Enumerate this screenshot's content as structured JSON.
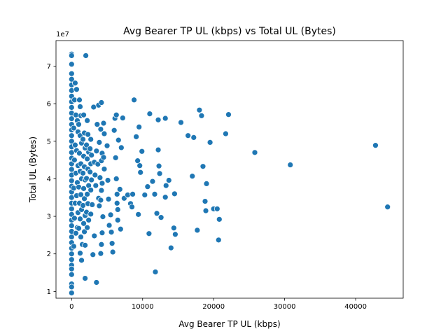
{
  "chart_data": {
    "type": "scatter",
    "title": "Avg Bearer TP UL (kbps) vs Total UL (Bytes)",
    "xlabel": "Avg Bearer TP UL (kbps)",
    "ylabel": "Total UL (Bytes)",
    "y_offset_label": "1e7",
    "xlim": [
      -2200,
      46700
    ],
    "ylim": [
      8200000.0,
      76800000.0
    ],
    "x_ticks": [
      0,
      10000,
      20000,
      30000,
      40000
    ],
    "x_tick_labels": [
      "0",
      "10000",
      "20000",
      "30000",
      "40000"
    ],
    "y_ticks": [
      10000000.0,
      20000000.0,
      30000000.0,
      40000000.0,
      50000000.0,
      60000000.0,
      70000000.0
    ],
    "y_tick_labels": [
      "1",
      "2",
      "3",
      "4",
      "5",
      "6",
      "7"
    ],
    "grid": false,
    "marker_color": "#1f77b4",
    "points": [
      [
        0,
        73200000
      ],
      [
        0,
        72800000
      ],
      [
        0,
        70500000
      ],
      [
        0,
        68000000
      ],
      [
        0,
        66500000
      ],
      [
        0,
        65000000
      ],
      [
        0,
        63500000
      ],
      [
        0,
        62000000
      ],
      [
        0,
        60500000
      ],
      [
        0,
        59000000
      ],
      [
        0,
        57500000
      ],
      [
        0,
        56000000
      ],
      [
        0,
        54500000
      ],
      [
        0,
        53000000
      ],
      [
        0,
        51500000
      ],
      [
        0,
        50000000
      ],
      [
        0,
        48500000
      ],
      [
        0,
        47000000
      ],
      [
        0,
        45500000
      ],
      [
        0,
        44000000
      ],
      [
        0,
        42500000
      ],
      [
        0,
        41000000
      ],
      [
        0,
        39500000
      ],
      [
        0,
        38000000
      ],
      [
        0,
        36500000
      ],
      [
        0,
        35000000
      ],
      [
        0,
        33500000
      ],
      [
        0,
        32000000
      ],
      [
        0,
        30500000
      ],
      [
        0,
        29000000
      ],
      [
        0,
        27500000
      ],
      [
        0,
        26000000
      ],
      [
        0,
        24500000
      ],
      [
        0,
        23000000
      ],
      [
        0,
        21500000
      ],
      [
        0,
        20000000
      ],
      [
        0,
        18500000
      ],
      [
        0,
        17000000
      ],
      [
        0,
        16000000
      ],
      [
        0,
        14500000
      ],
      [
        0,
        12000000
      ],
      [
        0,
        11200000
      ],
      [
        0,
        9600000
      ],
      [
        500,
        65500000
      ],
      [
        400,
        61000000
      ],
      [
        600,
        57000000
      ],
      [
        300,
        53500000
      ],
      [
        500,
        49000000
      ],
      [
        400,
        45000000
      ],
      [
        600,
        41500000
      ],
      [
        300,
        37500000
      ],
      [
        500,
        33500000
      ],
      [
        400,
        29500000
      ],
      [
        600,
        25500000
      ],
      [
        300,
        22000000
      ],
      [
        700,
        63800000
      ],
      [
        800,
        55500000
      ],
      [
        900,
        52500000
      ],
      [
        700,
        47500000
      ],
      [
        900,
        43500000
      ],
      [
        800,
        39000000
      ],
      [
        700,
        35500000
      ],
      [
        900,
        31000000
      ],
      [
        800,
        27000000
      ],
      [
        1100,
        61000000
      ],
      [
        1200,
        59200000
      ],
      [
        1300,
        56800000
      ],
      [
        1000,
        54500000
      ],
      [
        1200,
        51500000
      ],
      [
        1400,
        49500000
      ],
      [
        1100,
        46800000
      ],
      [
        1300,
        44000000
      ],
      [
        1200,
        42000000
      ],
      [
        1400,
        40000000
      ],
      [
        1000,
        37800000
      ],
      [
        1300,
        35800000
      ],
      [
        1100,
        33500000
      ],
      [
        1400,
        31800000
      ],
      [
        1200,
        29300000
      ],
      [
        1000,
        26800000
      ],
      [
        1300,
        24500000
      ],
      [
        1500,
        22500000
      ],
      [
        1200,
        20200000
      ],
      [
        1400,
        18300000
      ],
      [
        1700,
        57000000
      ],
      [
        1800,
        52200000
      ],
      [
        1600,
        50500000
      ],
      [
        1900,
        48200000
      ],
      [
        1700,
        46000000
      ],
      [
        1800,
        43200000
      ],
      [
        1600,
        41500000
      ],
      [
        1900,
        39700000
      ],
      [
        1700,
        37400000
      ],
      [
        1800,
        34700000
      ],
      [
        1600,
        32900000
      ],
      [
        1900,
        30200000
      ],
      [
        1700,
        28100000
      ],
      [
        1800,
        25900000
      ],
      [
        1900,
        22300000
      ],
      [
        2000,
        72800000
      ],
      [
        1900,
        13500000
      ],
      [
        2200,
        55500000
      ],
      [
        2300,
        51800000
      ],
      [
        2100,
        49000000
      ],
      [
        2400,
        47100000
      ],
      [
        2200,
        45300000
      ],
      [
        2300,
        42600000
      ],
      [
        2100,
        40100000
      ],
      [
        2400,
        38200000
      ],
      [
        2200,
        35900000
      ],
      [
        2300,
        33400000
      ],
      [
        2100,
        31100000
      ],
      [
        2400,
        29000000
      ],
      [
        2200,
        27000000
      ],
      [
        2700,
        50500000
      ],
      [
        2600,
        48000000
      ],
      [
        2800,
        46300000
      ],
      [
        2700,
        44000000
      ],
      [
        2600,
        41800000
      ],
      [
        2800,
        39700000
      ],
      [
        2700,
        37000000
      ],
      [
        2900,
        33100000
      ],
      [
        2700,
        30600000
      ],
      [
        3100,
        59100000
      ],
      [
        3000,
        19800000
      ],
      [
        3200,
        44400000
      ],
      [
        3300,
        41000000
      ],
      [
        3400,
        38200000
      ],
      [
        3200,
        24800000
      ],
      [
        3500,
        12400000
      ],
      [
        3600,
        54500000
      ],
      [
        3500,
        47400000
      ],
      [
        3700,
        43900000
      ],
      [
        3800,
        59600000
      ],
      [
        3900,
        49700000
      ],
      [
        3800,
        34800000
      ],
      [
        3900,
        32800000
      ],
      [
        4000,
        40300000
      ],
      [
        4200,
        60300000
      ],
      [
        4100,
        53200000
      ],
      [
        4300,
        46800000
      ],
      [
        4200,
        44800000
      ],
      [
        4300,
        38800000
      ],
      [
        4200,
        36900000
      ],
      [
        4100,
        34300000
      ],
      [
        4400,
        29900000
      ],
      [
        4300,
        25600000
      ],
      [
        4200,
        22500000
      ],
      [
        4100,
        20100000
      ],
      [
        4500,
        54800000
      ],
      [
        4600,
        52000000
      ],
      [
        4500,
        45700000
      ],
      [
        4600,
        42600000
      ],
      [
        5000,
        48800000
      ],
      [
        5100,
        39600000
      ],
      [
        5200,
        34600000
      ],
      [
        5300,
        27600000
      ],
      [
        5500,
        30400000
      ],
      [
        5600,
        25800000
      ],
      [
        5700,
        22800000
      ],
      [
        5800,
        20500000
      ],
      [
        6000,
        52900000
      ],
      [
        6100,
        56100000
      ],
      [
        6300,
        57000000
      ],
      [
        6200,
        45600000
      ],
      [
        6300,
        40000000
      ],
      [
        6400,
        35900000
      ],
      [
        6400,
        33500000
      ],
      [
        6500,
        31800000
      ],
      [
        6500,
        29000000
      ],
      [
        6600,
        50300000
      ],
      [
        6800,
        37200000
      ],
      [
        6900,
        26600000
      ],
      [
        7000,
        48300000
      ],
      [
        7200,
        56200000
      ],
      [
        7400,
        34800000
      ],
      [
        7900,
        35700000
      ],
      [
        8300,
        33400000
      ],
      [
        8500,
        32500000
      ],
      [
        8800,
        61000000
      ],
      [
        8600,
        35900000
      ],
      [
        9100,
        51200000
      ],
      [
        9300,
        44800000
      ],
      [
        9400,
        30500000
      ],
      [
        9500,
        53800000
      ],
      [
        9600,
        43500000
      ],
      [
        9700,
        41700000
      ],
      [
        9900,
        47300000
      ],
      [
        10300,
        35700000
      ],
      [
        10700,
        37900000
      ],
      [
        10900,
        25400000
      ],
      [
        11000,
        57300000
      ],
      [
        11400,
        39300000
      ],
      [
        11700,
        35900000
      ],
      [
        11800,
        15200000
      ],
      [
        12000,
        30800000
      ],
      [
        12200,
        55700000
      ],
      [
        12200,
        47700000
      ],
      [
        12300,
        43400000
      ],
      [
        12400,
        41400000
      ],
      [
        12600,
        29700000
      ],
      [
        13200,
        56100000
      ],
      [
        13300,
        38200000
      ],
      [
        13200,
        35100000
      ],
      [
        13700,
        39600000
      ],
      [
        14000,
        21600000
      ],
      [
        14400,
        26900000
      ],
      [
        14500,
        36000000
      ],
      [
        14600,
        25200000
      ],
      [
        15400,
        55000000
      ],
      [
        16400,
        51500000
      ],
      [
        17000,
        40700000
      ],
      [
        17200,
        51000000
      ],
      [
        17700,
        26300000
      ],
      [
        18000,
        58300000
      ],
      [
        18300,
        56800000
      ],
      [
        18500,
        43300000
      ],
      [
        18800,
        34000000
      ],
      [
        18900,
        31500000
      ],
      [
        19000,
        38700000
      ],
      [
        19500,
        49700000
      ],
      [
        20000,
        32000000
      ],
      [
        20500,
        32000000
      ],
      [
        20700,
        23700000
      ],
      [
        20800,
        29200000
      ],
      [
        21700,
        52000000
      ],
      [
        22100,
        57100000
      ],
      [
        25800,
        47000000
      ],
      [
        30800,
        43700000
      ],
      [
        42800,
        48900000
      ],
      [
        44500,
        32500000
      ]
    ]
  }
}
